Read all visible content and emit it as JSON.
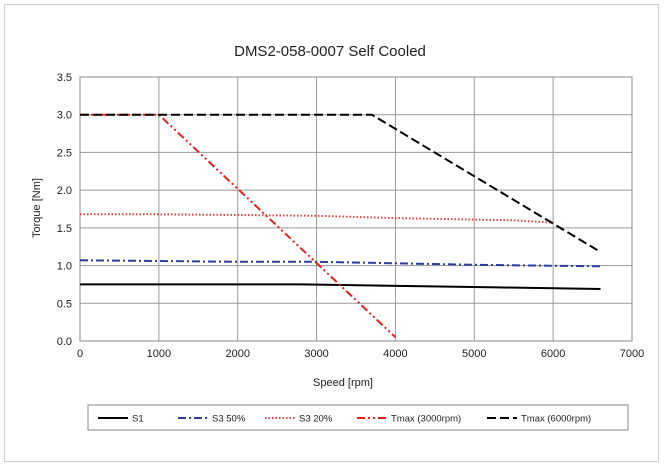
{
  "chart_data": {
    "type": "line",
    "title": "DMS2-058-0007 Self Cooled",
    "xlabel": "Speed [rpm]",
    "ylabel": "Torque [Nm]",
    "xlim": [
      0,
      7000
    ],
    "ylim": [
      0,
      3.5
    ],
    "xticks": [
      "0",
      "1000",
      "2000",
      "3000",
      "4000",
      "5000",
      "6000",
      "7000"
    ],
    "yticks": [
      "0.0",
      "0.5",
      "1.0",
      "1.5",
      "2.0",
      "2.5",
      "3.0",
      "3.5"
    ],
    "grid": true,
    "legend_position": "bottom",
    "series": [
      {
        "name": "S1",
        "color": "#000000",
        "dash": "solid",
        "points": [
          [
            0,
            0.75
          ],
          [
            2800,
            0.75
          ],
          [
            5300,
            0.71
          ],
          [
            6600,
            0.69
          ]
        ]
      },
      {
        "name": "S3 50%",
        "color": "#2d3ea0",
        "dash": "dashdot",
        "points": [
          [
            0,
            1.07
          ],
          [
            1000,
            1.06
          ],
          [
            2000,
            1.05
          ],
          [
            3000,
            1.05
          ],
          [
            4000,
            1.03
          ],
          [
            5000,
            1.01
          ],
          [
            6600,
            0.99
          ]
        ]
      },
      {
        "name": "S3 20%",
        "color": "#e8403a",
        "dash": "dotted",
        "points": [
          [
            0,
            1.68
          ],
          [
            1000,
            1.68
          ],
          [
            2000,
            1.67
          ],
          [
            3000,
            1.66
          ],
          [
            4000,
            1.63
          ],
          [
            5000,
            1.61
          ],
          [
            5500,
            1.6
          ],
          [
            6000,
            1.57
          ]
        ]
      },
      {
        "name": "Tmax (3000rpm)",
        "color": "#e8201a",
        "dash": "dashdotdot",
        "points": [
          [
            0,
            3.0
          ],
          [
            1000,
            3.0
          ],
          [
            4000,
            0.05
          ]
        ]
      },
      {
        "name": "Tmax (6000rpm)",
        "color": "#000000",
        "dash": "dashed",
        "points": [
          [
            0,
            3.0
          ],
          [
            3700,
            3.0
          ],
          [
            6600,
            1.18
          ]
        ]
      }
    ]
  }
}
